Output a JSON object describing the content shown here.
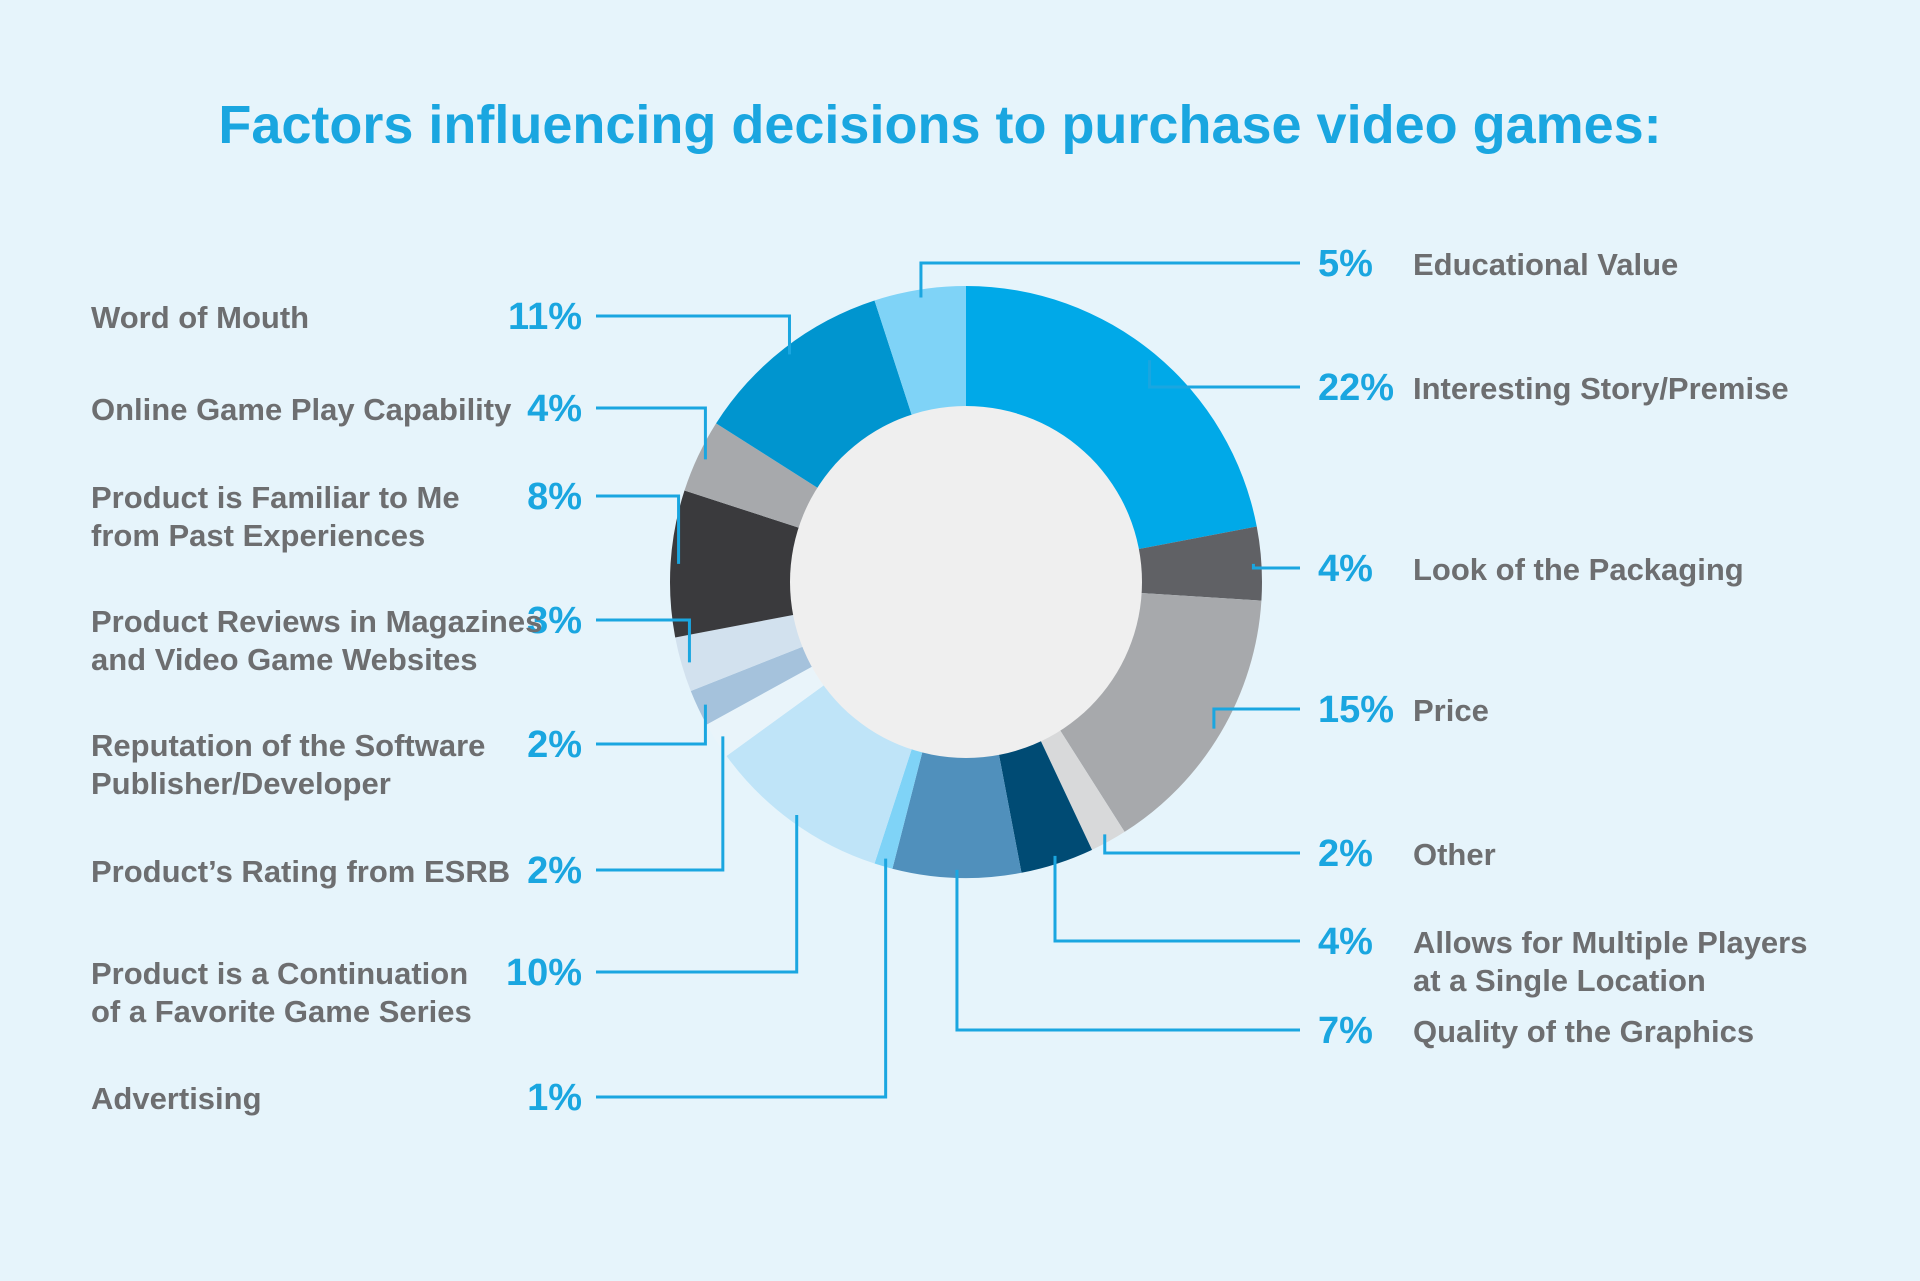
{
  "chart_data": {
    "type": "pie",
    "donut": true,
    "title": "Factors influencing decisions to purchase video games:",
    "slices": [
      {
        "label": "Interesting Story/Premise",
        "pct_label": "22%",
        "value": 22,
        "color": "#00a9e8"
      },
      {
        "label": "Look of the Packaging",
        "pct_label": "4%",
        "value": 4,
        "color": "#606165"
      },
      {
        "label": "Price",
        "pct_label": "15%",
        "value": 15,
        "color": "#a7a9ac"
      },
      {
        "label": "Other",
        "pct_label": "2%",
        "value": 2,
        "color": "#d8d9da"
      },
      {
        "label": "Allows for Multiple Players at a Single Location",
        "pct_label": "4%",
        "value": 4,
        "color": "#004b74"
      },
      {
        "label": "Quality of the Graphics",
        "pct_label": "7%",
        "value": 7,
        "color": "#5090bc"
      },
      {
        "label": "Advertising",
        "pct_label": "1%",
        "value": 1,
        "color": "#7fd3f7"
      },
      {
        "label": "Product is a Continuation of a Favorite Game Series",
        "pct_label": "10%",
        "value": 10,
        "color": "#bfe4f8"
      },
      {
        "label": "Product's Rating from ESRB",
        "pct_label": "2%",
        "value": 2,
        "color": "#e9f4fa"
      },
      {
        "label": "Reputation of the Software Publisher/Developer",
        "pct_label": "2%",
        "value": 2,
        "color": "#a5c2dc"
      },
      {
        "label": "Product Reviews in Magazines and Video Game Websites",
        "pct_label": "3%",
        "value": 3,
        "color": "#d2e1ee"
      },
      {
        "label": "Product is Familiar to Me from Past Experiences",
        "pct_label": "8%",
        "value": 8,
        "color": "#3a3a3d"
      },
      {
        "label": "Online Game Play Capability",
        "pct_label": "4%",
        "value": 4,
        "color": "#a7a9ac"
      },
      {
        "label": "Word of Mouth",
        "pct_label": "11%",
        "value": 11,
        "color": "#0095cf"
      },
      {
        "label": "Educational Value",
        "pct_label": "5%",
        "value": 5,
        "color": "#7fd3f7"
      }
    ]
  },
  "legend_left": [
    {
      "slice": 13,
      "lines": [
        "Word of Mouth"
      ]
    },
    {
      "slice": 12,
      "lines": [
        "Online Game Play Capability"
      ]
    },
    {
      "slice": 11,
      "lines": [
        "Product is Familiar to Me",
        "from Past Experiences"
      ]
    },
    {
      "slice": 10,
      "lines": [
        "Product Reviews in Magazines",
        "and Video Game Websites"
      ]
    },
    {
      "slice": 9,
      "lines": [
        "Reputation of the Software",
        "Publisher/Developer"
      ]
    },
    {
      "slice": 8,
      "lines": [
        "Product’s Rating from ESRB"
      ]
    },
    {
      "slice": 7,
      "lines": [
        "Product is a Continuation",
        "of a Favorite Game Series"
      ]
    },
    {
      "slice": 6,
      "lines": [
        "Advertising"
      ]
    }
  ],
  "legend_right": [
    {
      "slice": 14,
      "lines": [
        "Educational Value"
      ]
    },
    {
      "slice": 0,
      "lines": [
        "Interesting Story/Premise"
      ]
    },
    {
      "slice": 1,
      "lines": [
        "Look of the Packaging"
      ]
    },
    {
      "slice": 2,
      "lines": [
        "Price"
      ]
    },
    {
      "slice": 3,
      "lines": [
        "Other"
      ]
    },
    {
      "slice": 4,
      "lines": [
        "Allows for Multiple Players",
        "at a Single Location"
      ]
    },
    {
      "slice": 5,
      "lines": [
        "Quality of the Graphics"
      ]
    }
  ]
}
